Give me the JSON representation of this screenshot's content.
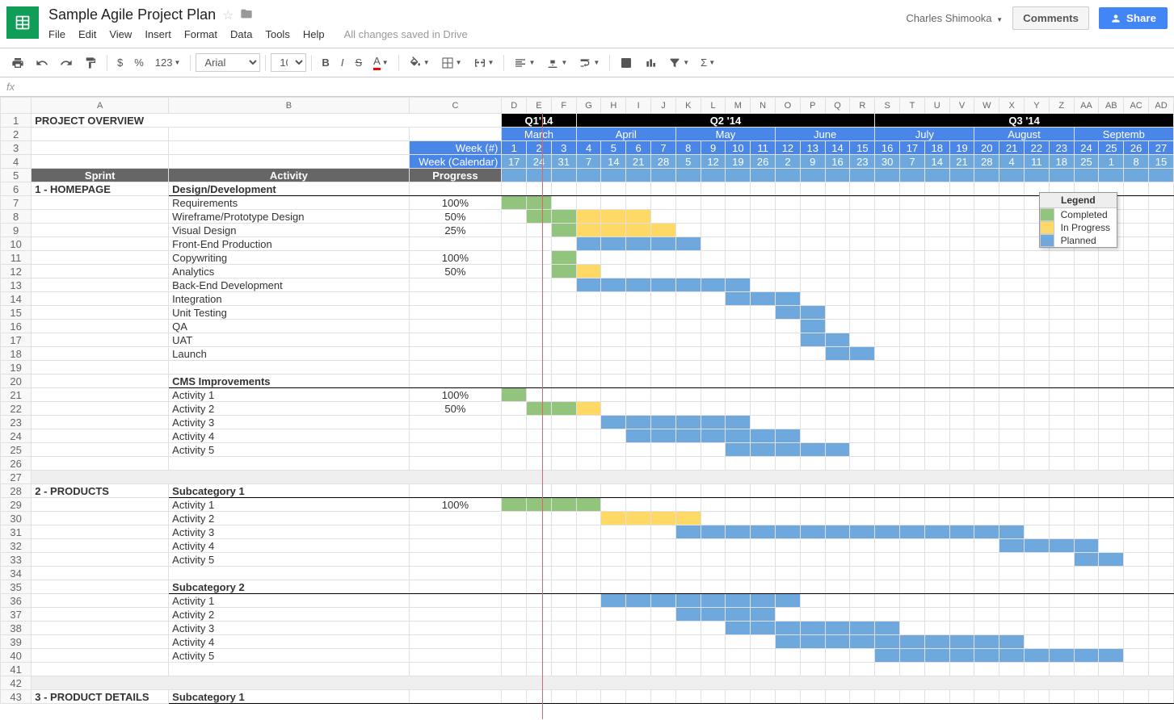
{
  "app": {
    "title": "Sample Agile Project Plan",
    "user": "Charles Shimooka",
    "save_status": "All changes saved in Drive",
    "comments_label": "Comments",
    "share_label": "Share"
  },
  "menus": [
    "File",
    "Edit",
    "View",
    "Insert",
    "Format",
    "Data",
    "Tools",
    "Help"
  ],
  "toolbar": {
    "font_name": "Arial",
    "font_size": "10",
    "currency": "$",
    "percent": "%",
    "decimals": "123"
  },
  "formula_bar": {
    "fx": "fx"
  },
  "columns": [
    "A",
    "B",
    "C",
    "D",
    "E",
    "F",
    "G",
    "H",
    "I",
    "J",
    "K",
    "L",
    "M",
    "N",
    "O",
    "P",
    "Q",
    "R",
    "S",
    "T",
    "U",
    "V",
    "W",
    "X",
    "Y",
    "Z",
    "AA",
    "AB",
    "AC",
    "AD"
  ],
  "col_widths": {
    "row_header": 36,
    "A": 160,
    "B": 280,
    "C": 108,
    "week": 29
  },
  "overview_title": "PROJECT OVERVIEW",
  "quarters": [
    {
      "label": "Q1'14",
      "span": 3
    },
    {
      "label": "Q2 '14",
      "span": 12
    },
    {
      "label": "Q3 '14",
      "span": 12
    }
  ],
  "months": [
    {
      "label": "March",
      "span": 3
    },
    {
      "label": "April",
      "span": 4
    },
    {
      "label": "May",
      "span": 4
    },
    {
      "label": "June",
      "span": 4
    },
    {
      "label": "July",
      "span": 4
    },
    {
      "label": "August",
      "span": 4
    },
    {
      "label": "Septemb",
      "span": 4
    }
  ],
  "week_label_num": "Week (#)",
  "week_label_cal": "Week (Calendar)",
  "week_numbers": [
    "1",
    "2",
    "3",
    "4",
    "5",
    "6",
    "7",
    "8",
    "9",
    "10",
    "11",
    "12",
    "13",
    "14",
    "15",
    "16",
    "17",
    "18",
    "19",
    "20",
    "21",
    "22",
    "23",
    "24",
    "25",
    "26",
    "27"
  ],
  "week_calendar": [
    "17",
    "24",
    "31",
    "7",
    "14",
    "21",
    "28",
    "5",
    "12",
    "19",
    "26",
    "2",
    "9",
    "16",
    "23",
    "30",
    "7",
    "14",
    "21",
    "28",
    "4",
    "11",
    "18",
    "25",
    "1",
    "8",
    "15"
  ],
  "headers": {
    "sprint": "Sprint",
    "activity": "Activity",
    "progress": "Progress"
  },
  "today_line_after_week": 3,
  "colors": {
    "completed": "#93c47d",
    "inprogress": "#ffd966",
    "planned": "#6fa8dc",
    "quarter_bg": "#000000",
    "month_bg": "#4a86e8",
    "week_bg": "#4a86e8",
    "weeknum_bg": "#6fa8dc",
    "section_bg": "#666666",
    "today_line": "#e06666",
    "row_header_bg": "#f8f8f8"
  },
  "legend": {
    "title": "Legend",
    "items": [
      {
        "label": "Completed",
        "color": "#93c47d"
      },
      {
        "label": "In Progress",
        "color": "#ffd966"
      },
      {
        "label": "Planned",
        "color": "#6fa8dc"
      }
    ]
  },
  "rows": [
    {
      "n": 6,
      "sprint": "1 - HOMEPAGE",
      "activity": "Design/Development",
      "subcat": true
    },
    {
      "n": 7,
      "activity": "Requirements",
      "progress": "100%",
      "bars": [
        {
          "s": 1,
          "e": 2,
          "t": "completed"
        }
      ]
    },
    {
      "n": 8,
      "activity": "Wireframe/Prototype Design",
      "progress": "50%",
      "bars": [
        {
          "s": 2,
          "e": 3,
          "t": "completed"
        },
        {
          "s": 4,
          "e": 6,
          "t": "inprogress"
        }
      ]
    },
    {
      "n": 9,
      "activity": "Visual Design",
      "progress": "25%",
      "bars": [
        {
          "s": 3,
          "e": 3,
          "t": "completed"
        },
        {
          "s": 4,
          "e": 7,
          "t": "inprogress"
        }
      ]
    },
    {
      "n": 10,
      "activity": "Front-End Production",
      "bars": [
        {
          "s": 4,
          "e": 8,
          "t": "planned"
        }
      ]
    },
    {
      "n": 11,
      "activity": "Copywriting",
      "progress": "100%",
      "bars": [
        {
          "s": 3,
          "e": 3,
          "t": "completed"
        }
      ]
    },
    {
      "n": 12,
      "activity": "Analytics",
      "progress": "50%",
      "bars": [
        {
          "s": 3,
          "e": 3,
          "t": "completed"
        },
        {
          "s": 4,
          "e": 4,
          "t": "inprogress"
        }
      ]
    },
    {
      "n": 13,
      "activity": "Back-End Development",
      "bars": [
        {
          "s": 4,
          "e": 10,
          "t": "planned"
        }
      ]
    },
    {
      "n": 14,
      "activity": "Integration",
      "bars": [
        {
          "s": 10,
          "e": 12,
          "t": "planned"
        }
      ]
    },
    {
      "n": 15,
      "activity": "Unit Testing",
      "bars": [
        {
          "s": 12,
          "e": 13,
          "t": "planned"
        }
      ]
    },
    {
      "n": 16,
      "activity": "QA",
      "bars": [
        {
          "s": 13,
          "e": 13,
          "t": "planned"
        }
      ]
    },
    {
      "n": 17,
      "activity": "UAT",
      "bars": [
        {
          "s": 13,
          "e": 14,
          "t": "planned"
        }
      ]
    },
    {
      "n": 18,
      "activity": "Launch",
      "bars": [
        {
          "s": 14,
          "e": 15,
          "t": "planned"
        }
      ]
    },
    {
      "n": 19
    },
    {
      "n": 20,
      "activity": "CMS Improvements",
      "subcat": true
    },
    {
      "n": 21,
      "activity": "Activity 1",
      "progress": "100%",
      "bars": [
        {
          "s": 1,
          "e": 1,
          "t": "completed"
        }
      ]
    },
    {
      "n": 22,
      "activity": "Activity 2",
      "progress": "50%",
      "bars": [
        {
          "s": 2,
          "e": 3,
          "t": "completed"
        },
        {
          "s": 4,
          "e": 4,
          "t": "inprogress"
        }
      ]
    },
    {
      "n": 23,
      "activity": "Activity 3",
      "bars": [
        {
          "s": 5,
          "e": 10,
          "t": "planned"
        }
      ]
    },
    {
      "n": 24,
      "activity": "Activity 4",
      "bars": [
        {
          "s": 6,
          "e": 12,
          "t": "planned"
        }
      ]
    },
    {
      "n": 25,
      "activity": "Activity 5",
      "bars": [
        {
          "s": 10,
          "e": 14,
          "t": "planned"
        }
      ]
    },
    {
      "n": 26
    },
    {
      "n": 27,
      "spacer": true
    },
    {
      "n": 28,
      "sprint": "2 - PRODUCTS",
      "activity": "Subcategory 1",
      "subcat": true
    },
    {
      "n": 29,
      "activity": "Activity 1",
      "progress": "100%",
      "bars": [
        {
          "s": 1,
          "e": 4,
          "t": "completed"
        }
      ]
    },
    {
      "n": 30,
      "activity": "Activity 2",
      "bars": [
        {
          "s": 5,
          "e": 8,
          "t": "inprogress"
        }
      ]
    },
    {
      "n": 31,
      "activity": "Activity 3",
      "bars": [
        {
          "s": 8,
          "e": 21,
          "t": "planned"
        }
      ]
    },
    {
      "n": 32,
      "activity": "Activity 4",
      "bars": [
        {
          "s": 21,
          "e": 24,
          "t": "planned"
        }
      ]
    },
    {
      "n": 33,
      "activity": "Activity 5",
      "bars": [
        {
          "s": 24,
          "e": 25,
          "t": "planned"
        }
      ]
    },
    {
      "n": 34
    },
    {
      "n": 35,
      "activity": "Subcategory 2",
      "subcat": true
    },
    {
      "n": 36,
      "activity": "Activity 1",
      "bars": [
        {
          "s": 5,
          "e": 12,
          "t": "planned"
        }
      ]
    },
    {
      "n": 37,
      "activity": "Activity 2",
      "bars": [
        {
          "s": 8,
          "e": 11,
          "t": "planned"
        }
      ]
    },
    {
      "n": 38,
      "activity": "Activity 3",
      "bars": [
        {
          "s": 10,
          "e": 16,
          "t": "planned"
        }
      ]
    },
    {
      "n": 39,
      "activity": "Activity 4",
      "bars": [
        {
          "s": 12,
          "e": 21,
          "t": "planned"
        }
      ]
    },
    {
      "n": 40,
      "activity": "Activity 5",
      "bars": [
        {
          "s": 16,
          "e": 25,
          "t": "planned"
        }
      ]
    },
    {
      "n": 41
    },
    {
      "n": 42,
      "spacer": true
    },
    {
      "n": 43,
      "sprint": "3 - PRODUCT DETAILS",
      "activity": "Subcategory 1",
      "subcat": true
    }
  ]
}
